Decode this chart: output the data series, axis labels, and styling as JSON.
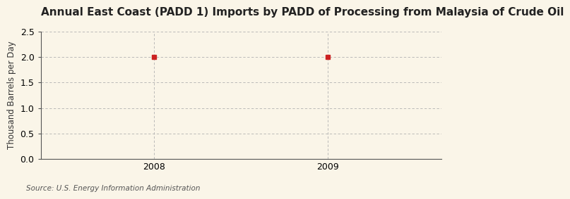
{
  "title": "Annual East Coast (PADD 1) Imports by PADD of Processing from Malaysia of Crude Oil",
  "xlabel": "",
  "ylabel": "Thousand Barrels per Day",
  "x_values": [
    2008,
    2009
  ],
  "y_values": [
    2.0,
    2.0
  ],
  "xlim": [
    2007.35,
    2009.65
  ],
  "ylim": [
    0.0,
    2.5
  ],
  "yticks": [
    0.0,
    0.5,
    1.0,
    1.5,
    2.0,
    2.5
  ],
  "xticks": [
    2008,
    2009
  ],
  "background_color": "#faf5e8",
  "plot_bg_color": "#faf5e8",
  "grid_color": "#b0b0b0",
  "marker_color": "#cc2222",
  "marker_style": "s",
  "marker_size": 4,
  "title_fontsize": 11,
  "ylabel_fontsize": 8.5,
  "tick_fontsize": 9,
  "source_text": "Source: U.S. Energy Information Administration",
  "source_fontsize": 7.5
}
